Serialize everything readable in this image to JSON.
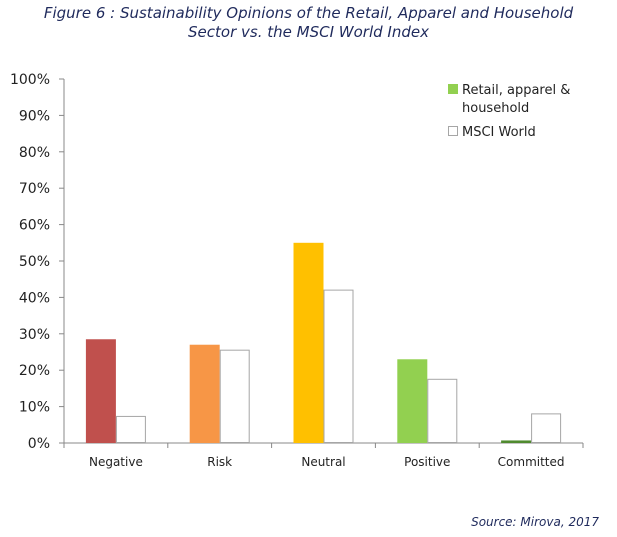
{
  "title": {
    "line1": "Figure 6 : Sustainability Opinions of the Retail, Apparel and Household",
    "line2": "Sector vs. the MSCI World Index"
  },
  "source": "Source: Mirova, 2017",
  "legend": {
    "items": [
      {
        "line1": "Retail, apparel &",
        "line2": "household",
        "color": "#92d050",
        "border": "#92d050"
      },
      {
        "line1": "MSCI World",
        "line2": "",
        "color": "#ffffff",
        "border": "#a6a6a6"
      }
    ]
  },
  "chart_data": {
    "type": "bar",
    "categories": [
      "Negative",
      "Risk",
      "Neutral",
      "Positive",
      "Committed"
    ],
    "series": [
      {
        "name": "Retail, apparel & household",
        "values": [
          28.5,
          27,
          55,
          23,
          0.7
        ],
        "colors": [
          "#c0504d",
          "#f79646",
          "#ffc000",
          "#92d050",
          "#4f8a2e"
        ]
      },
      {
        "name": "MSCI World",
        "values": [
          7.3,
          25.5,
          42,
          17.5,
          8
        ],
        "color": "#ffffff",
        "stroke": "#a6a6a6"
      }
    ],
    "yticks": [
      "0%",
      "10%",
      "20%",
      "30%",
      "40%",
      "50%",
      "60%",
      "70%",
      "80%",
      "90%",
      "100%"
    ],
    "ylim": [
      0,
      100
    ],
    "grid": false,
    "legend_position": "top-right"
  }
}
